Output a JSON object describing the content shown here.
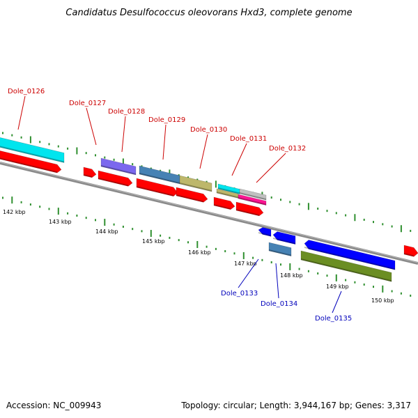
{
  "title": "Candidatus Desulfococcus oleovorans Hxd3, complete genome",
  "footer": {
    "accession": "Accession: NC_009943",
    "summary": "Topology: circular; Length: 3,944,167 bp; Genes: 3,317"
  },
  "colors": {
    "label_top": "#cc0000",
    "label_bottom": "#0000bb",
    "tick": "#2f8f2f",
    "backbone": "#808080"
  },
  "ticks": [
    {
      "label": "142 kbp"
    },
    {
      "label": "143 kbp"
    },
    {
      "label": "144 kbp"
    },
    {
      "label": "145 kbp"
    },
    {
      "label": "146 kbp"
    },
    {
      "label": "147 kbp"
    },
    {
      "label": "148 kbp"
    },
    {
      "label": "149 kbp"
    },
    {
      "label": "150 kbp"
    }
  ],
  "gene_labels_top": [
    {
      "name": "Dole_0126"
    },
    {
      "name": "Dole_0127"
    },
    {
      "name": "Dole_0128"
    },
    {
      "name": "Dole_0129"
    },
    {
      "name": "Dole_0130"
    },
    {
      "name": "Dole_0131"
    },
    {
      "name": "Dole_0132"
    }
  ],
  "gene_labels_bottom": [
    {
      "name": "Dole_0133"
    },
    {
      "name": "Dole_0134"
    },
    {
      "name": "Dole_0135"
    }
  ],
  "feature_colors": {
    "cds": "#ff0000",
    "cyan": "#00e5ee",
    "purple": "#7b68ee",
    "steelblue": "#4682b4",
    "khaki": "#bdb76b",
    "pink": "#ff1493",
    "silver": "#c0c0c0",
    "blue": "#0000ff",
    "olive": "#6b8e23"
  }
}
